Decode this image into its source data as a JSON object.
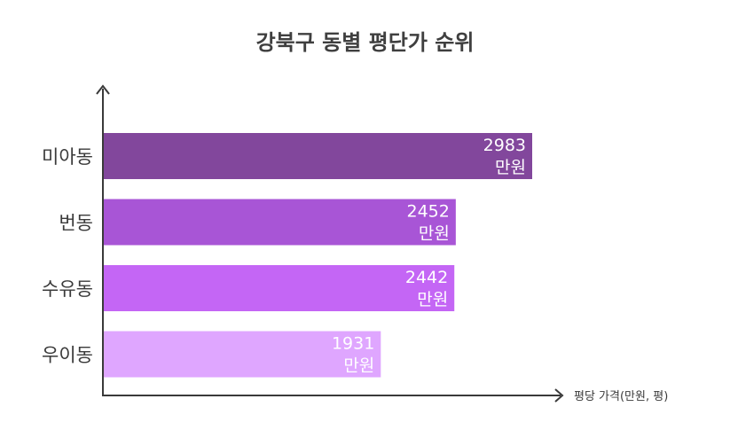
{
  "chart_data": {
    "type": "bar",
    "orientation": "horizontal",
    "title": "강북구 동별 평단가 순위",
    "xlabel": "평당 가격(만원, 평)",
    "ylabel": "",
    "categories": [
      "미아동",
      "번동",
      "수유동",
      "우이동"
    ],
    "values": [
      2983,
      2452,
      2442,
      1931
    ],
    "value_labels": [
      {
        "number": "2983",
        "unit": "만원"
      },
      {
        "number": "2452",
        "unit": "만원"
      },
      {
        "number": "2442",
        "unit": "만원"
      },
      {
        "number": "1931",
        "unit": "만원"
      }
    ],
    "colors": [
      "#82479c",
      "#a855d6",
      "#c466f5",
      "#dfa6ff"
    ],
    "grid": false,
    "legend": "none"
  }
}
